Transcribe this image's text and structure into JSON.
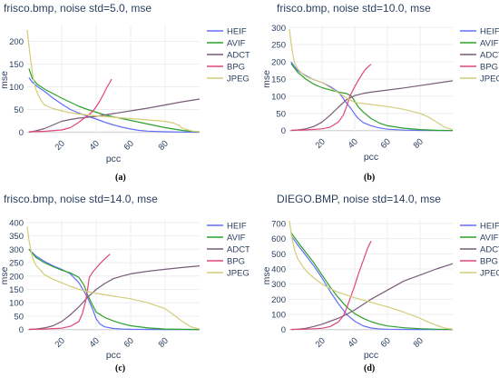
{
  "chart_data": [
    {
      "type": "line",
      "title": "frisco.bmp, noise std=5.0, mse",
      "xlabel": "pcc",
      "ylabel": "mse",
      "caption": "(a)",
      "xlim": [
        0,
        100
      ],
      "ylim": [
        -5,
        235
      ],
      "xticks": [
        20,
        40,
        60,
        80
      ],
      "yticks": [
        0,
        50,
        100,
        150,
        200
      ],
      "grid": true,
      "legend": "right",
      "series": [
        {
          "name": "HEIF",
          "color": "#636efa",
          "x": [
            1,
            3,
            6,
            10,
            15,
            20,
            25,
            30,
            35,
            40,
            45,
            50,
            55,
            60,
            65,
            70,
            80,
            90,
            100
          ],
          "y": [
            120,
            110,
            100,
            90,
            75,
            62,
            50,
            42,
            35,
            29,
            22,
            16,
            11,
            7,
            4,
            2.5,
            1,
            0.5,
            0
          ]
        },
        {
          "name": "AVIF",
          "color": "#2ca02c",
          "x": [
            1,
            3,
            6,
            10,
            15,
            20,
            25,
            30,
            35,
            40,
            45,
            50,
            55,
            60,
            65,
            70,
            75,
            80,
            85,
            90,
            95,
            100
          ],
          "y": [
            140,
            118,
            105,
            95,
            85,
            75,
            66,
            57,
            50,
            44,
            38,
            34,
            30,
            26,
            22,
            18,
            14,
            10,
            7,
            4,
            2,
            1
          ]
        },
        {
          "name": "ADCT",
          "color": "#7a5c7a",
          "x": [
            1,
            5,
            10,
            15,
            20,
            25,
            30,
            35,
            40,
            45,
            50,
            60,
            70,
            80,
            90,
            100
          ],
          "y": [
            0,
            3,
            8,
            16,
            24,
            28,
            31,
            33,
            35,
            38,
            41,
            47,
            53,
            60,
            67,
            73
          ]
        },
        {
          "name": "BPG",
          "color": "#e0457b",
          "x": [
            1,
            10,
            20,
            25,
            30,
            32,
            35,
            38,
            40,
            42,
            44,
            46,
            48,
            49
          ],
          "y": [
            1,
            2,
            5,
            10,
            22,
            28,
            36,
            46,
            56,
            68,
            82,
            97,
            110,
            117
          ]
        },
        {
          "name": "JPEG",
          "color": "#d4cc7a",
          "x": [
            0,
            1,
            2,
            3,
            4,
            5,
            6,
            8,
            10,
            15,
            20,
            25,
            30,
            40,
            50,
            60,
            70,
            80,
            85,
            88,
            90,
            95,
            100
          ],
          "y": [
            225,
            190,
            160,
            130,
            110,
            95,
            85,
            70,
            60,
            52,
            47,
            43,
            40,
            36,
            33,
            30,
            27,
            24,
            20,
            15,
            9,
            3,
            1
          ]
        }
      ]
    },
    {
      "type": "line",
      "title": "frisco.bmp, noise std=10.0, mse",
      "xlabel": "pcc",
      "ylabel": "mse",
      "caption": "(b)",
      "xlim": [
        0,
        100
      ],
      "ylim": [
        -6,
        306
      ],
      "xticks": [
        20,
        40,
        60,
        80
      ],
      "yticks": [
        0,
        50,
        100,
        150,
        200,
        250,
        300
      ],
      "grid": true,
      "legend": "right",
      "series": [
        {
          "name": "HEIF",
          "color": "#636efa",
          "x": [
            1,
            5,
            10,
            15,
            20,
            25,
            30,
            32,
            35,
            38,
            40,
            42,
            45,
            50,
            55,
            60,
            70,
            80,
            100
          ],
          "y": [
            200,
            175,
            160,
            148,
            140,
            128,
            112,
            100,
            80,
            62,
            48,
            36,
            24,
            14,
            8,
            4,
            1.5,
            0.5,
            0
          ]
        },
        {
          "name": "AVIF",
          "color": "#2ca02c",
          "x": [
            1,
            5,
            10,
            15,
            20,
            25,
            30,
            35,
            38,
            40,
            42,
            45,
            50,
            55,
            60,
            70,
            80,
            90,
            100
          ],
          "y": [
            195,
            170,
            150,
            135,
            125,
            118,
            112,
            108,
            100,
            85,
            70,
            55,
            35,
            22,
            14,
            7,
            3,
            1,
            0
          ]
        },
        {
          "name": "ADCT",
          "color": "#7a5c7a",
          "x": [
            1,
            5,
            10,
            15,
            20,
            25,
            30,
            35,
            40,
            45,
            50,
            60,
            70,
            80,
            90,
            100
          ],
          "y": [
            0,
            2,
            5,
            12,
            25,
            45,
            68,
            90,
            102,
            108,
            112,
            118,
            124,
            131,
            138,
            145
          ]
        },
        {
          "name": "BPG",
          "color": "#e0457b",
          "x": [
            1,
            10,
            20,
            25,
            30,
            33,
            35,
            37,
            40,
            42,
            44,
            46,
            48,
            50
          ],
          "y": [
            1,
            2,
            5,
            10,
            25,
            45,
            70,
            100,
            128,
            145,
            160,
            175,
            185,
            193
          ]
        },
        {
          "name": "JPEG",
          "color": "#d4cc7a",
          "x": [
            0,
            1,
            2,
            3,
            5,
            8,
            10,
            15,
            20,
            25,
            30,
            35,
            40,
            50,
            60,
            70,
            80,
            85,
            90,
            95,
            100
          ],
          "y": [
            295,
            255,
            225,
            200,
            180,
            165,
            158,
            148,
            140,
            125,
            110,
            95,
            82,
            76,
            70,
            62,
            50,
            40,
            25,
            10,
            3
          ]
        }
      ]
    },
    {
      "type": "line",
      "title": "frisco.bmp, noise std=14.0, mse",
      "xlabel": "pcc",
      "ylabel": "mse",
      "caption": "(c)",
      "xlim": [
        0,
        100
      ],
      "ylim": [
        -8,
        410
      ],
      "xticks": [
        20,
        40,
        60,
        80
      ],
      "yticks": [
        0,
        50,
        100,
        150,
        200,
        250,
        300,
        350,
        400
      ],
      "grid": true,
      "legend": "right",
      "series": [
        {
          "name": "HEIF",
          "color": "#636efa",
          "x": [
            1,
            5,
            10,
            15,
            20,
            25,
            30,
            35,
            38,
            40,
            42,
            45,
            50,
            55,
            60,
            70,
            80,
            100
          ],
          "y": [
            300,
            275,
            255,
            238,
            225,
            208,
            175,
            120,
            75,
            40,
            22,
            10,
            4,
            2,
            1,
            0.5,
            0.2,
            0
          ]
        },
        {
          "name": "AVIF",
          "color": "#2ca02c",
          "x": [
            1,
            5,
            10,
            15,
            20,
            25,
            30,
            33,
            35,
            38,
            40,
            45,
            50,
            55,
            60,
            70,
            80,
            100
          ],
          "y": [
            300,
            270,
            250,
            235,
            222,
            212,
            195,
            165,
            130,
            90,
            65,
            45,
            32,
            22,
            14,
            6,
            2,
            0
          ]
        },
        {
          "name": "ADCT",
          "color": "#7a5c7a",
          "x": [
            1,
            5,
            10,
            15,
            20,
            25,
            30,
            35,
            40,
            45,
            50,
            55,
            60,
            70,
            80,
            90,
            100
          ],
          "y": [
            0,
            2,
            6,
            14,
            30,
            55,
            85,
            120,
            150,
            172,
            190,
            200,
            208,
            218,
            225,
            232,
            238
          ]
        },
        {
          "name": "BPG",
          "color": "#e0457b",
          "x": [
            1,
            10,
            20,
            25,
            30,
            32,
            34,
            35,
            36,
            38,
            40,
            42,
            44,
            46,
            48
          ],
          "y": [
            1,
            2,
            5,
            12,
            30,
            60,
            110,
            150,
            195,
            215,
            230,
            245,
            258,
            270,
            282
          ]
        },
        {
          "name": "JPEG",
          "color": "#d4cc7a",
          "x": [
            0,
            1,
            2,
            3,
            5,
            8,
            10,
            15,
            20,
            25,
            30,
            40,
            50,
            60,
            70,
            80,
            85,
            90,
            95,
            100
          ],
          "y": [
            385,
            335,
            300,
            270,
            240,
            220,
            205,
            188,
            175,
            162,
            150,
            135,
            125,
            115,
            100,
            78,
            55,
            30,
            10,
            2
          ]
        }
      ]
    },
    {
      "type": "line",
      "title": "DIEGO.BMP, noise std=14.0, mse",
      "xlabel": "pcc",
      "ylabel": "mse",
      "caption": "(d)",
      "xlim": [
        0,
        100
      ],
      "ylim": [
        -14,
        724
      ],
      "xticks": [
        20,
        40,
        60,
        80
      ],
      "yticks": [
        0,
        100,
        200,
        300,
        400,
        500,
        600,
        700
      ],
      "grid": true,
      "legend": "right",
      "series": [
        {
          "name": "HEIF",
          "color": "#636efa",
          "x": [
            1,
            5,
            10,
            15,
            20,
            25,
            30,
            35,
            40,
            45,
            50,
            55,
            60,
            70,
            80,
            100
          ],
          "y": [
            620,
            560,
            490,
            420,
            340,
            250,
            170,
            100,
            55,
            25,
            10,
            4,
            2,
            1,
            0.5,
            0
          ]
        },
        {
          "name": "AVIF",
          "color": "#2ca02c",
          "x": [
            1,
            5,
            10,
            15,
            20,
            25,
            30,
            35,
            40,
            45,
            50,
            55,
            60,
            70,
            80,
            90,
            100
          ],
          "y": [
            640,
            580,
            510,
            440,
            360,
            280,
            210,
            150,
            105,
            75,
            52,
            36,
            24,
            12,
            6,
            2,
            0
          ]
        },
        {
          "name": "ADCT",
          "color": "#7a5c7a",
          "x": [
            1,
            5,
            10,
            15,
            20,
            25,
            30,
            35,
            40,
            45,
            50,
            60,
            70,
            80,
            90,
            100
          ],
          "y": [
            0,
            2,
            8,
            20,
            35,
            55,
            75,
            100,
            130,
            165,
            200,
            260,
            320,
            360,
            400,
            435
          ]
        },
        {
          "name": "BPG",
          "color": "#e0457b",
          "x": [
            1,
            10,
            20,
            25,
            30,
            33,
            35,
            37,
            40,
            42,
            44,
            46,
            48,
            50
          ],
          "y": [
            1,
            3,
            8,
            20,
            50,
            90,
            140,
            200,
            290,
            360,
            420,
            480,
            540,
            585
          ]
        },
        {
          "name": "JPEG",
          "color": "#d4cc7a",
          "x": [
            0,
            1,
            2,
            3,
            5,
            8,
            10,
            15,
            20,
            25,
            30,
            40,
            50,
            60,
            70,
            80,
            85,
            90,
            95,
            100
          ],
          "y": [
            720,
            640,
            580,
            530,
            470,
            420,
            390,
            340,
            300,
            270,
            245,
            210,
            180,
            150,
            115,
            75,
            50,
            28,
            10,
            2
          ]
        }
      ]
    }
  ]
}
